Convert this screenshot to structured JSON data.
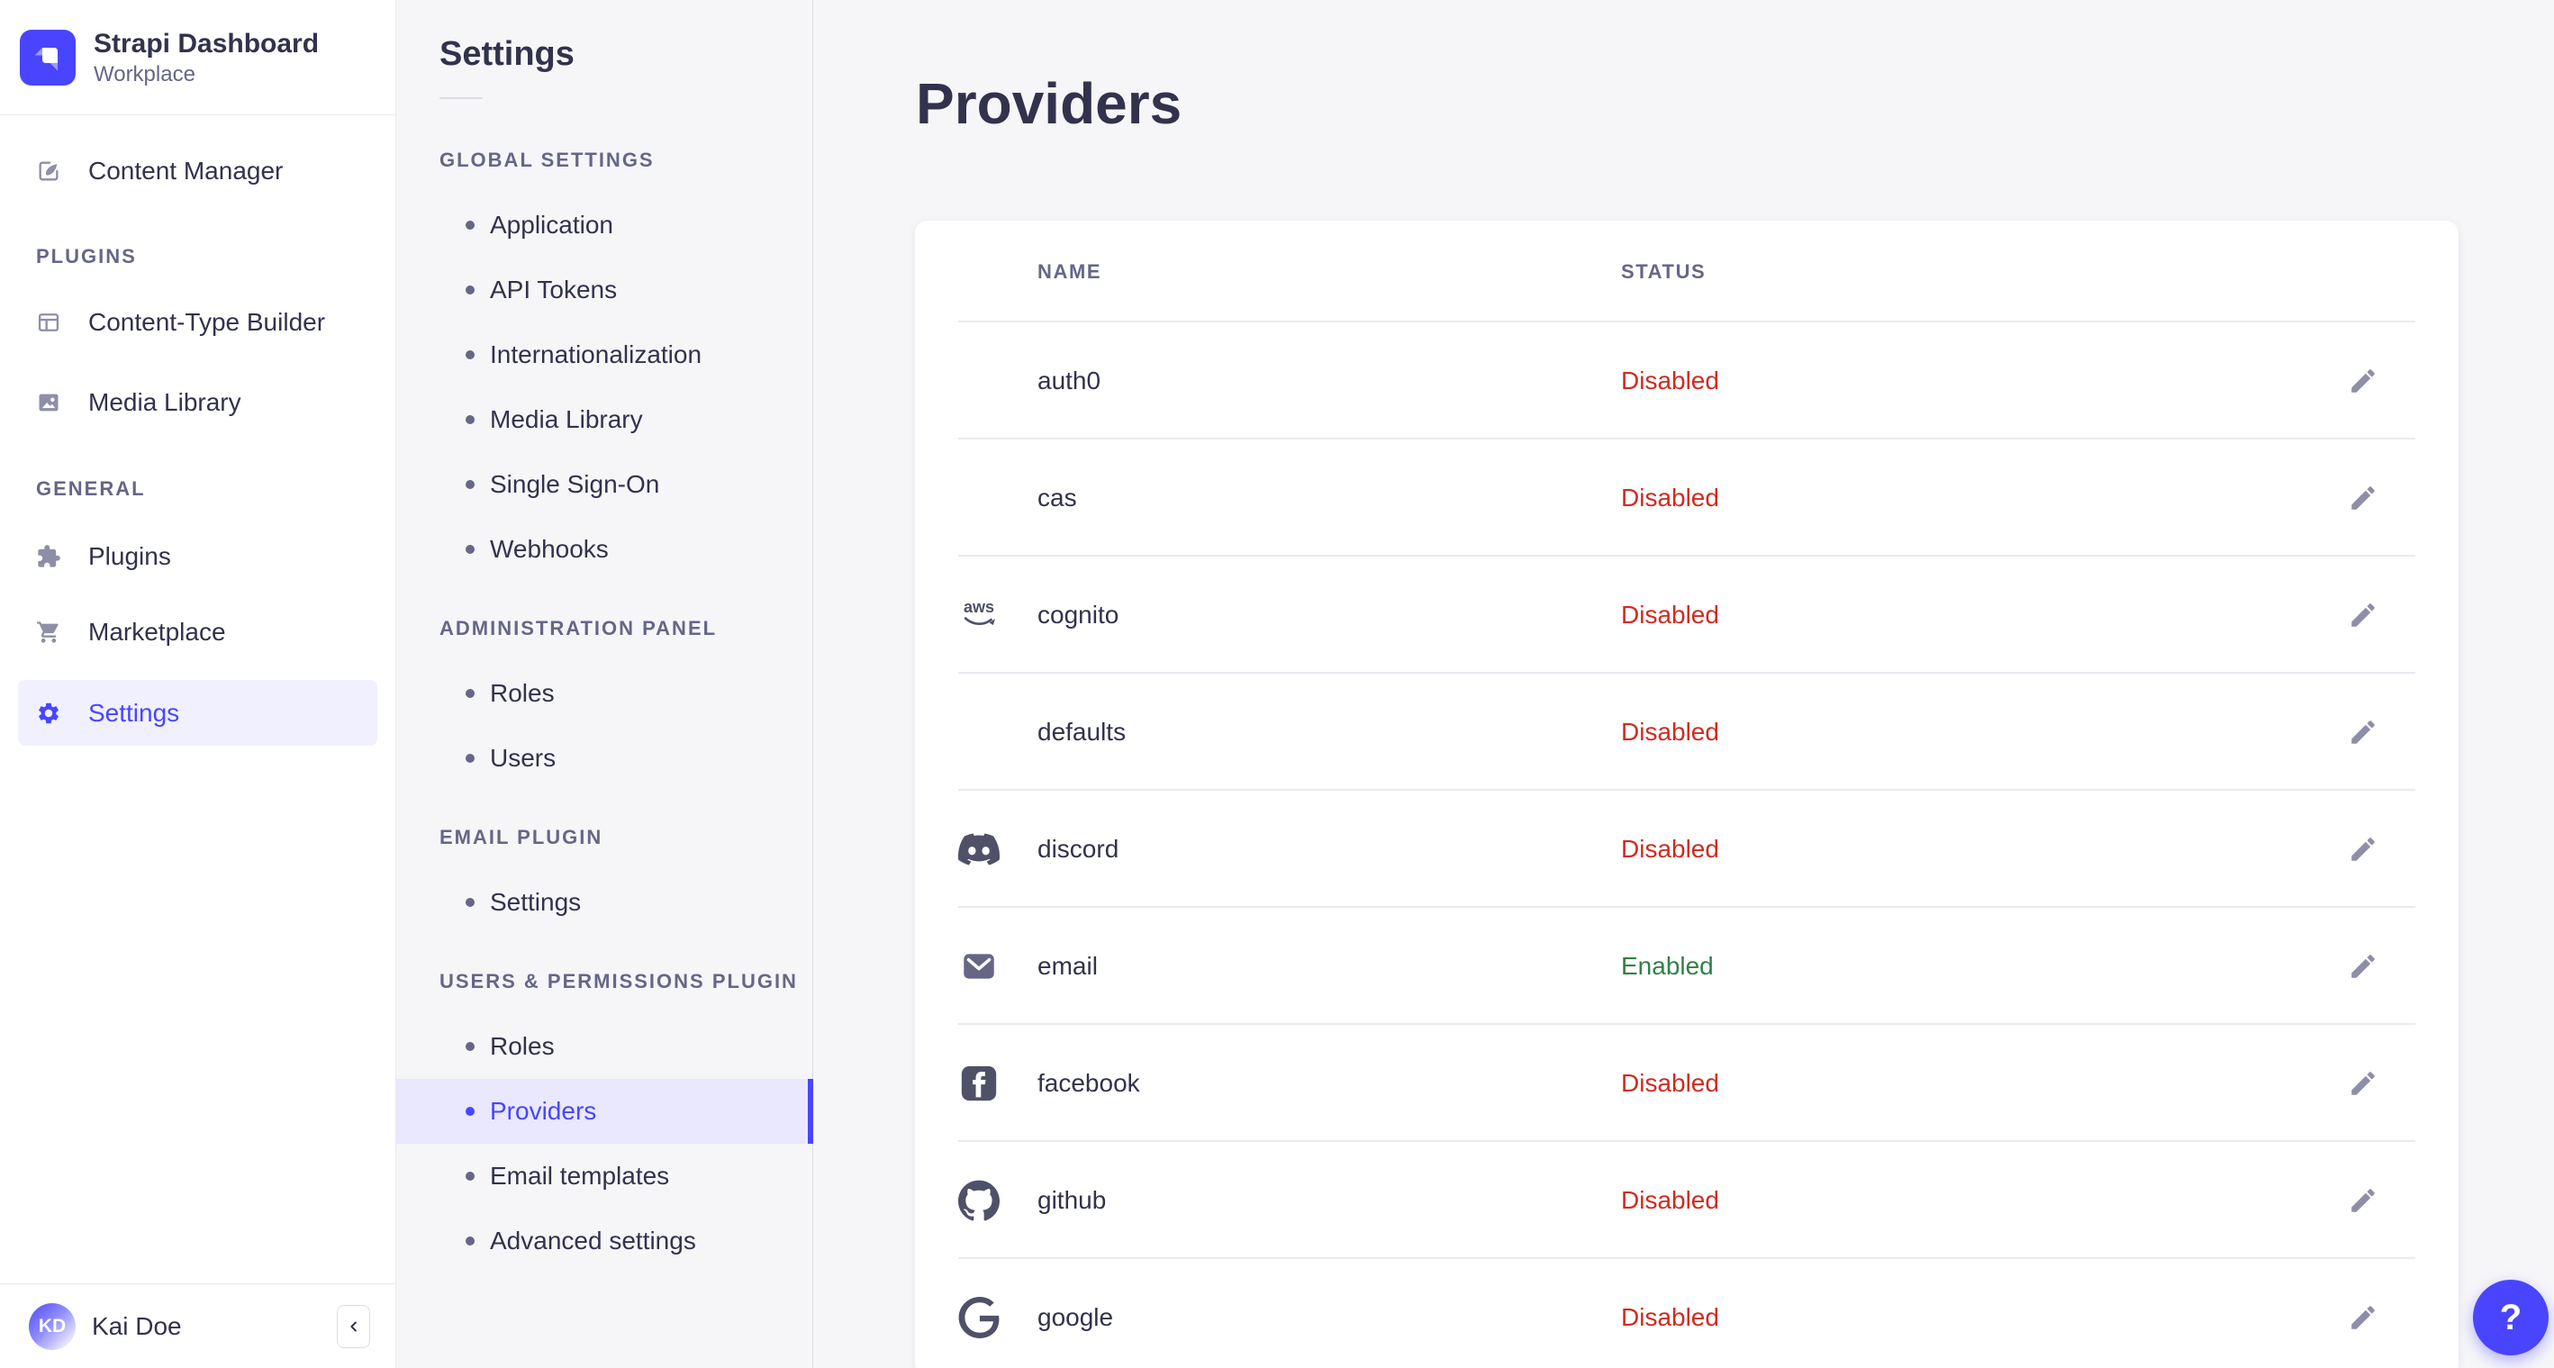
{
  "brand": {
    "title": "Strapi Dashboard",
    "subtitle": "Workplace"
  },
  "sidebar": {
    "content_manager": "Content Manager",
    "plugins_header": "PLUGINS",
    "content_type_builder": "Content-Type Builder",
    "media_library": "Media Library",
    "general_header": "GENERAL",
    "plugins": "Plugins",
    "marketplace": "Marketplace",
    "settings": "Settings",
    "user_name": "Kai Doe",
    "user_initials": "KD"
  },
  "subnav": {
    "title": "Settings",
    "sections": [
      {
        "header": "GLOBAL SETTINGS",
        "items": [
          {
            "label": "Application"
          },
          {
            "label": "API Tokens"
          },
          {
            "label": "Internationalization"
          },
          {
            "label": "Media Library"
          },
          {
            "label": "Single Sign-On"
          },
          {
            "label": "Webhooks"
          }
        ]
      },
      {
        "header": "ADMINISTRATION PANEL",
        "items": [
          {
            "label": "Roles"
          },
          {
            "label": "Users"
          }
        ]
      },
      {
        "header": "EMAIL PLUGIN",
        "items": [
          {
            "label": "Settings"
          }
        ]
      },
      {
        "header": "USERS & PERMISSIONS PLUGIN",
        "items": [
          {
            "label": "Roles"
          },
          {
            "label": "Providers",
            "active": true
          },
          {
            "label": "Email templates"
          },
          {
            "label": "Advanced settings"
          }
        ]
      }
    ]
  },
  "page": {
    "title": "Providers"
  },
  "table": {
    "headers": {
      "name": "NAME",
      "status": "STATUS"
    },
    "enabled_label": "Enabled",
    "rows": [
      {
        "name": "auth0",
        "status": "Disabled",
        "icon": null
      },
      {
        "name": "cas",
        "status": "Disabled",
        "icon": null
      },
      {
        "name": "cognito",
        "status": "Disabled",
        "icon": "aws-icon"
      },
      {
        "name": "defaults",
        "status": "Disabled",
        "icon": null
      },
      {
        "name": "discord",
        "status": "Disabled",
        "icon": "discord-icon"
      },
      {
        "name": "email",
        "status": "Enabled",
        "icon": "email-icon"
      },
      {
        "name": "facebook",
        "status": "Disabled",
        "icon": "facebook-icon"
      },
      {
        "name": "github",
        "status": "Disabled",
        "icon": "github-icon"
      },
      {
        "name": "google",
        "status": "Disabled",
        "icon": "google-icon"
      }
    ]
  },
  "help": {
    "label": "?"
  },
  "colors": {
    "primary": "#4945ff",
    "disabled": "#d02b20",
    "enabled": "#328048"
  }
}
